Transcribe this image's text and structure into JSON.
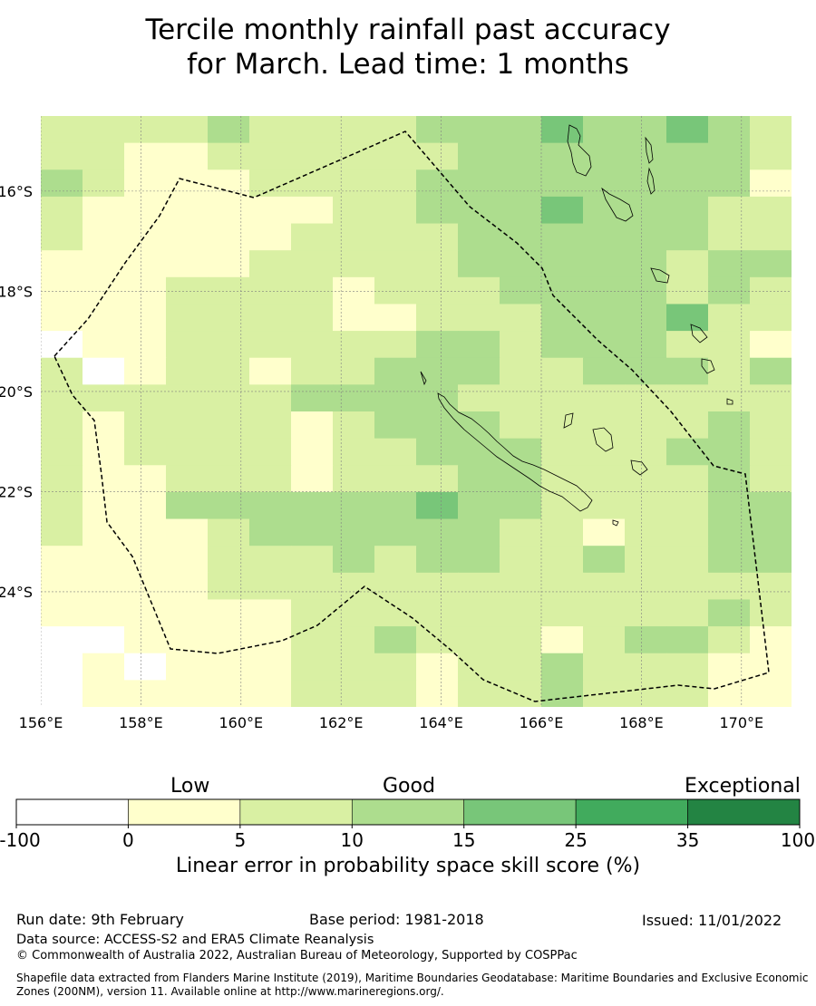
{
  "title_line1": "Tercile monthly rainfall past accuracy",
  "title_line2": "for March. Lead time: 1 months",
  "map": {
    "lon_labels": [
      "156°E",
      "158°E",
      "160°E",
      "162°E",
      "164°E",
      "166°E",
      "168°E",
      "170°E"
    ],
    "lon_values": [
      156,
      158,
      160,
      162,
      164,
      166,
      168,
      170
    ],
    "lat_labels": [
      "16°S",
      "18°S",
      "20°S",
      "22°S",
      "24°S"
    ],
    "lat_values": [
      -16,
      -18,
      -20,
      -22,
      -24
    ],
    "lon_range": [
      156,
      171
    ],
    "lat_range": [
      -14.5,
      -26.3
    ],
    "grid_resolution_deg": [
      0.833,
      0.556
    ],
    "skill_grid": [
      [
        1,
        1,
        1,
        1,
        2,
        1,
        1,
        1,
        1,
        2,
        2,
        2,
        3,
        2,
        2,
        3,
        2,
        1
      ],
      [
        1,
        1,
        0,
        0,
        1,
        1,
        1,
        1,
        1,
        1,
        2,
        2,
        2,
        2,
        2,
        2,
        2,
        1
      ],
      [
        2,
        1,
        0,
        0,
        0,
        1,
        1,
        1,
        1,
        2,
        2,
        2,
        2,
        2,
        2,
        2,
        2,
        0
      ],
      [
        1,
        0,
        0,
        0,
        0,
        0,
        0,
        1,
        1,
        2,
        2,
        2,
        3,
        2,
        2,
        2,
        1,
        1
      ],
      [
        1,
        0,
        0,
        0,
        0,
        0,
        1,
        1,
        1,
        1,
        2,
        2,
        2,
        2,
        2,
        2,
        1,
        1
      ],
      [
        0,
        0,
        0,
        0,
        0,
        1,
        1,
        1,
        1,
        1,
        2,
        2,
        2,
        2,
        2,
        1,
        2,
        2
      ],
      [
        0,
        0,
        0,
        1,
        1,
        1,
        1,
        0,
        1,
        1,
        1,
        2,
        2,
        2,
        2,
        1,
        2,
        1
      ],
      [
        0,
        0,
        0,
        1,
        1,
        1,
        1,
        0,
        0,
        1,
        1,
        1,
        2,
        2,
        2,
        3,
        1,
        1
      ],
      [
        -1,
        0,
        0,
        1,
        1,
        1,
        1,
        1,
        1,
        2,
        2,
        1,
        2,
        2,
        2,
        1,
        1,
        0
      ],
      [
        1,
        -1,
        0,
        1,
        1,
        0,
        1,
        1,
        2,
        2,
        2,
        1,
        1,
        2,
        2,
        2,
        1,
        2
      ],
      [
        1,
        1,
        1,
        1,
        1,
        1,
        2,
        2,
        2,
        2,
        1,
        1,
        1,
        1,
        1,
        1,
        1,
        1
      ],
      [
        1,
        0,
        1,
        1,
        1,
        1,
        0,
        1,
        2,
        2,
        2,
        1,
        1,
        1,
        1,
        1,
        2,
        1
      ],
      [
        1,
        0,
        1,
        1,
        1,
        1,
        0,
        1,
        1,
        2,
        2,
        2,
        1,
        1,
        1,
        2,
        2,
        1
      ],
      [
        1,
        0,
        0,
        1,
        1,
        1,
        0,
        1,
        1,
        1,
        2,
        2,
        1,
        1,
        1,
        1,
        2,
        1
      ],
      [
        1,
        0,
        0,
        2,
        2,
        2,
        2,
        2,
        2,
        3,
        2,
        2,
        1,
        1,
        1,
        1,
        2,
        2
      ],
      [
        1,
        0,
        0,
        0,
        1,
        2,
        2,
        2,
        2,
        2,
        2,
        1,
        1,
        0,
        1,
        1,
        2,
        2
      ],
      [
        0,
        0,
        0,
        0,
        1,
        1,
        1,
        2,
        1,
        2,
        2,
        1,
        1,
        2,
        1,
        1,
        2,
        2
      ],
      [
        0,
        0,
        0,
        0,
        1,
        1,
        1,
        1,
        1,
        1,
        1,
        1,
        1,
        1,
        1,
        1,
        1,
        1
      ],
      [
        0,
        0,
        0,
        0,
        0,
        0,
        1,
        1,
        1,
        1,
        1,
        1,
        1,
        1,
        1,
        1,
        2,
        1
      ],
      [
        -1,
        -1,
        0,
        0,
        0,
        0,
        1,
        1,
        2,
        1,
        1,
        1,
        0,
        1,
        2,
        2,
        1,
        0
      ],
      [
        -1,
        0,
        -1,
        0,
        0,
        0,
        1,
        1,
        1,
        0,
        1,
        1,
        2,
        1,
        1,
        1,
        0,
        0
      ],
      [
        -1,
        0,
        0,
        0,
        0,
        0,
        1,
        1,
        1,
        0,
        1,
        1,
        2,
        1,
        1,
        1,
        0,
        0
      ]
    ]
  },
  "colorbar": {
    "categories": [
      "Low",
      "Good",
      "Exceptional"
    ],
    "tick_labels": [
      "-100",
      "0",
      "5",
      "10",
      "15",
      "25",
      "35",
      "100"
    ],
    "colors": [
      "#ffffff",
      "#ffffcc",
      "#d9f0a3",
      "#addd8e",
      "#78c679",
      "#41ab5d",
      "#238443"
    ],
    "xlabel": "Linear error in probability space skill score (%)"
  },
  "footer": {
    "run_date": "Run date: 9th February",
    "base_period": "Base period: 1981-2018",
    "issued": "Issued: 11/01/2022",
    "data_source": "Data source: ACCESS-S2 and ERA5 Climate Reanalysis",
    "copyright": "© Commonwealth of Australia 2022, Australian Bureau of Meteorology, Supported by COSPPac",
    "shapefile": "Shapefile data extracted from Flanders Marine Institute (2019), Maritime Boundaries Geodatabase: Maritime Boundaries and Exclusive Economic Zones (200NM), version 11. Available online at http://www.marineregions.org/."
  }
}
